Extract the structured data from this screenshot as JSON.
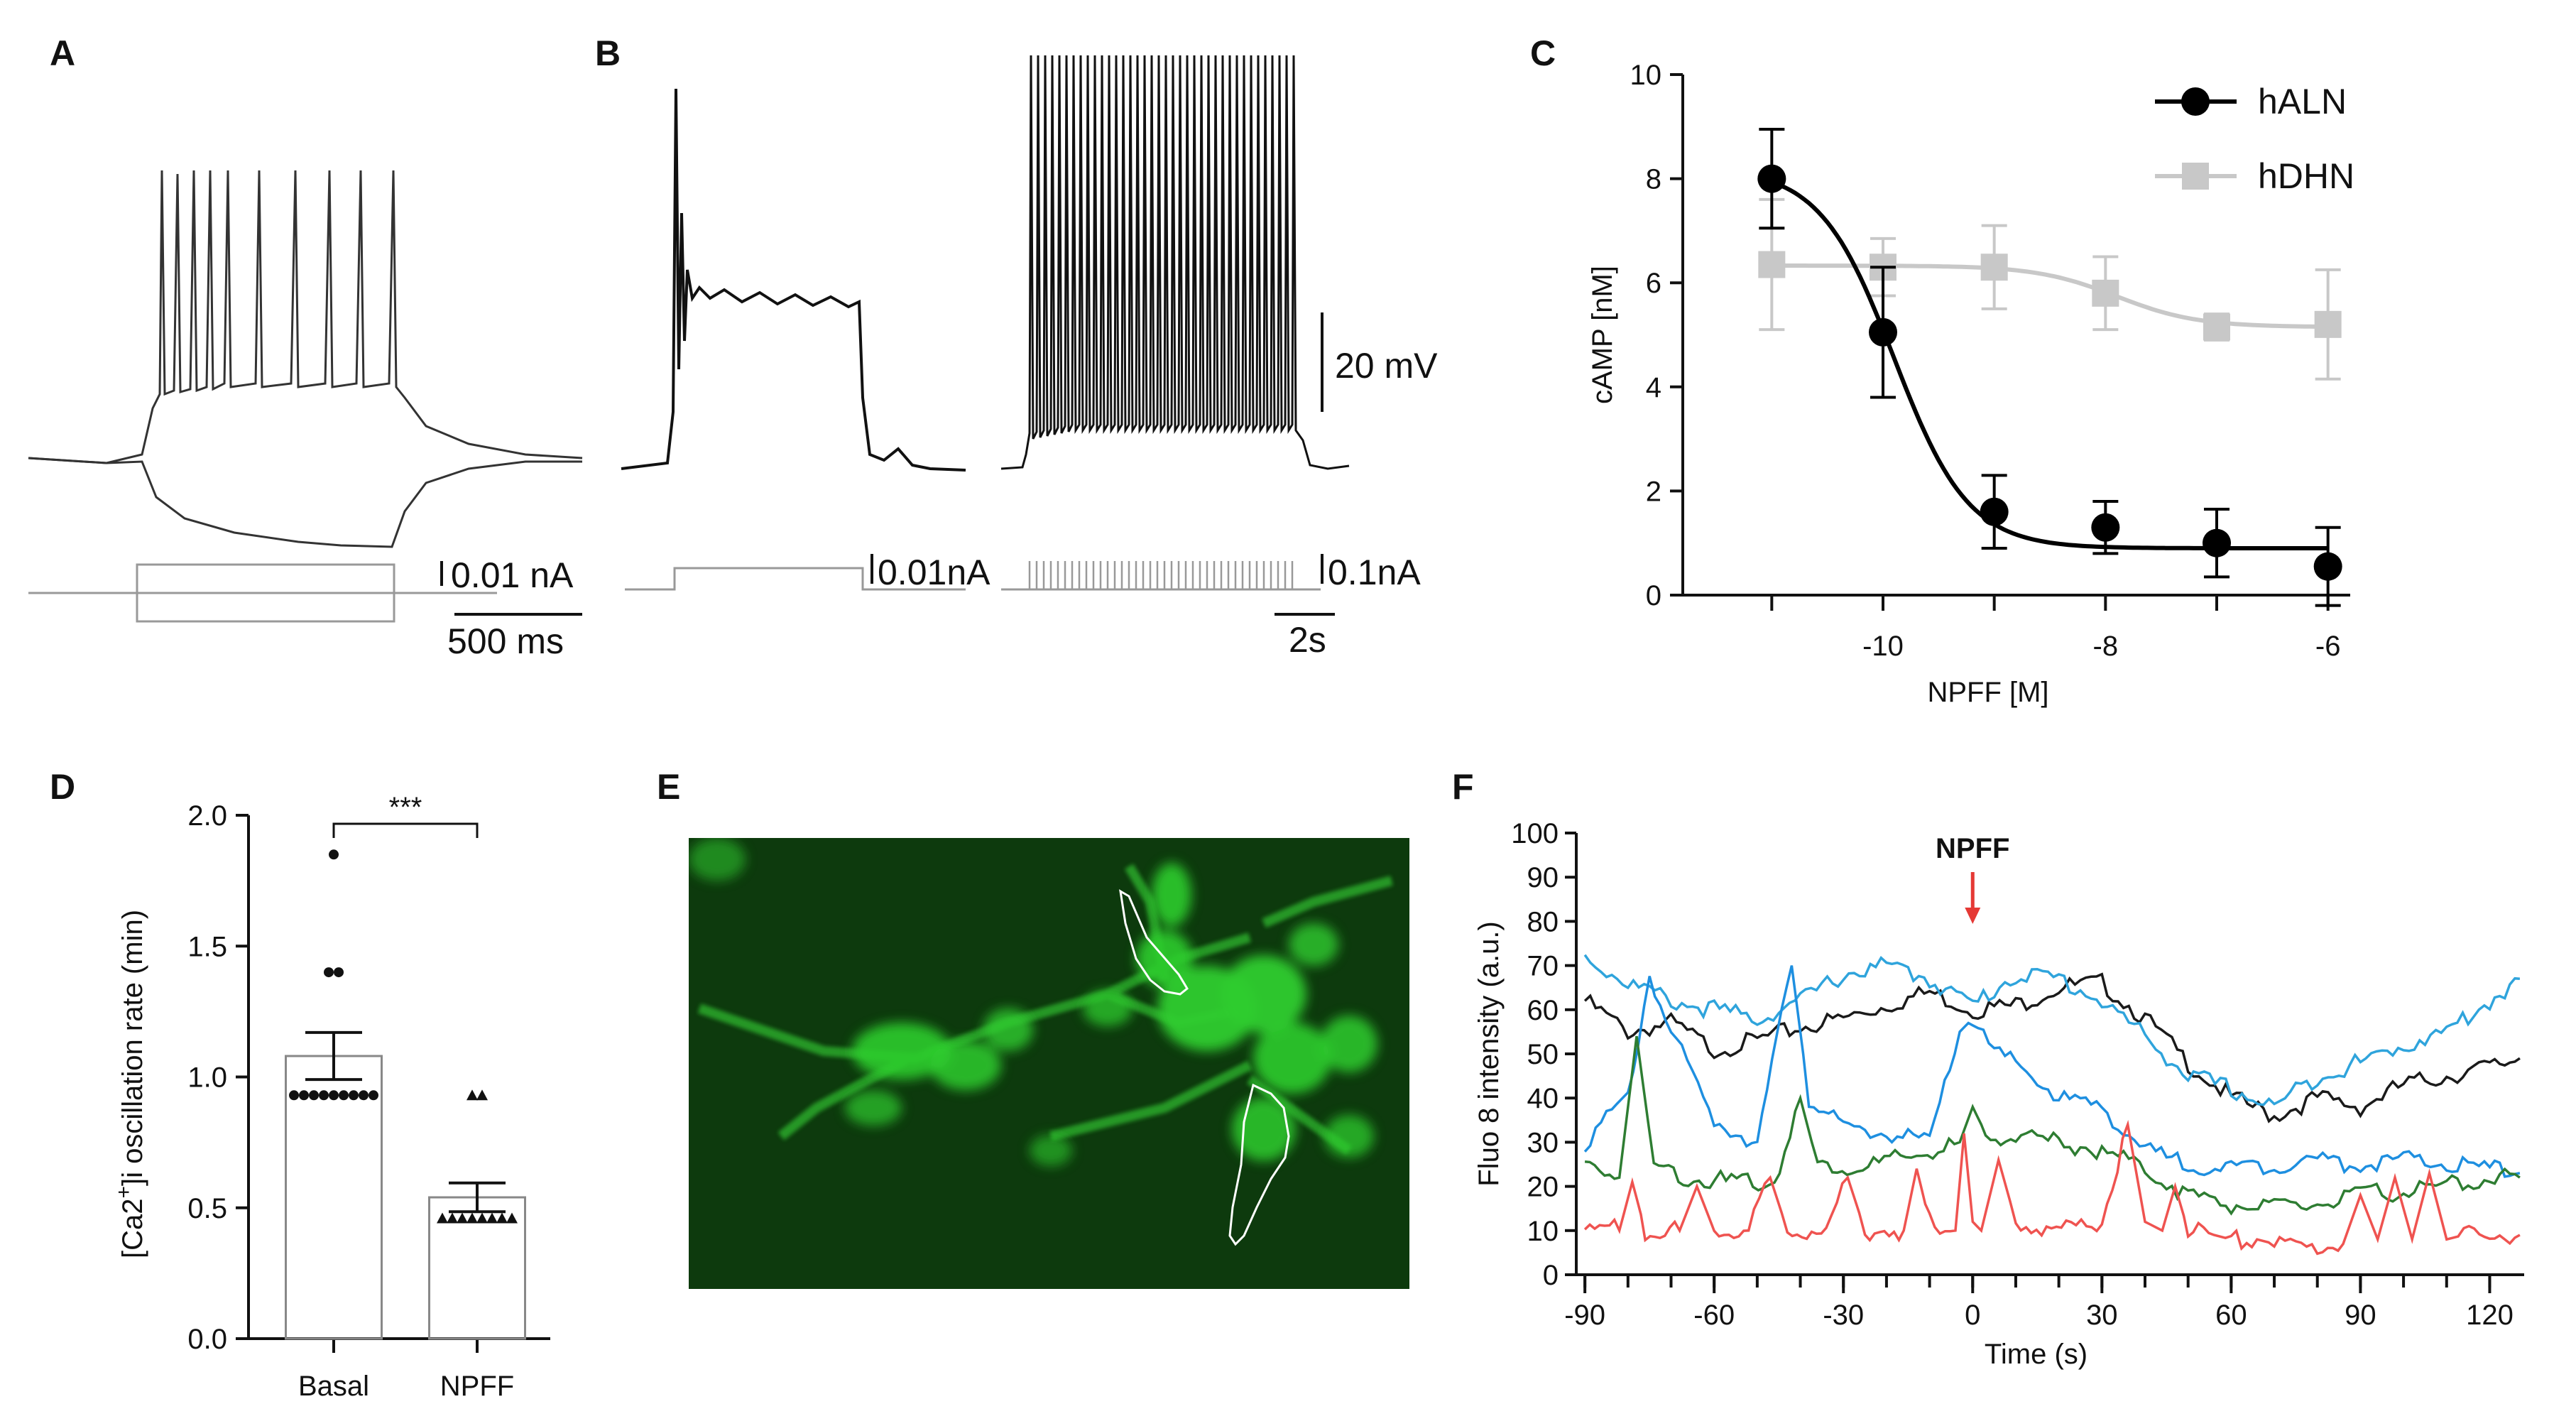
{
  "panels": {
    "A": "A",
    "B": "B",
    "C": "C",
    "D": "D",
    "E": "E",
    "F": "F"
  },
  "scale_bars": {
    "a_current": "0.01 nA",
    "a_time": "500 ms",
    "b_voltage": "20 mV",
    "b_current_step": "0.01nA",
    "b_current_train": "0.1nA",
    "b_time": "2s"
  },
  "colors": {
    "halN": "#000000",
    "hdhn": "#c8c8c8",
    "trace_black": "#1a1a1a",
    "trace_blue1": "#2fa4dc",
    "trace_blue2": "#1e8fe0",
    "trace_green": "#2e7d32",
    "trace_red": "#ef5350",
    "arrow": "#e53935",
    "cell_bg": "#0d3a0d",
    "cell_fg": "#2ecc2e"
  },
  "chart_data": [
    {
      "panel": "C",
      "type": "line",
      "xlabel": "NPFF [M]",
      "ylabel": "cAMP [nM]",
      "xlim": [
        -11.8,
        -5.8
      ],
      "ylim": [
        0,
        10
      ],
      "xticks": [
        -10,
        -8,
        -6
      ],
      "xtick_labels": [
        "-10",
        "-8",
        "-6"
      ],
      "yticks": [
        0,
        2,
        4,
        6,
        8,
        10
      ],
      "ytick_labels": [
        "0",
        "2",
        "4",
        "6",
        "8",
        "10"
      ],
      "legend_position": "top-right",
      "series": [
        {
          "name": "hALN",
          "x": [
            -11,
            -10,
            -9,
            -8,
            -7,
            -6
          ],
          "values": [
            8.0,
            5.05,
            1.6,
            1.3,
            1.0,
            0.55
          ],
          "errors": [
            0.95,
            1.25,
            0.7,
            0.5,
            0.65,
            0.75
          ],
          "fit": {
            "top": 8.2,
            "bottom": 0.9,
            "logEC50": -9.9,
            "hill": 1.3
          }
        },
        {
          "name": "hDHN",
          "x": [
            -11,
            -10,
            -9,
            -8,
            -7,
            -6
          ],
          "values": [
            6.35,
            6.3,
            6.3,
            5.8,
            5.15,
            5.2
          ],
          "errors": [
            1.25,
            0.55,
            0.8,
            0.7,
            0.25,
            1.05
          ],
          "fit": {
            "top": 6.33,
            "bottom": 5.15,
            "logEC50": -7.9,
            "hill": 1.2
          }
        }
      ]
    },
    {
      "panel": "D",
      "type": "bar",
      "ylabel_main": "[Ca2",
      "ylabel_sup": "+",
      "ylabel_rest": "]i oscillation  rate (min)",
      "categories": [
        "Basal",
        "NPFF"
      ],
      "values": [
        1.08,
        0.54
      ],
      "errors": [
        0.09,
        0.055
      ],
      "points": [
        [
          0.93,
          0.93,
          0.93,
          0.93,
          0.93,
          0.93,
          0.93,
          0.93,
          0.93,
          1.85,
          1.4,
          1.4
        ],
        [
          0.46,
          0.46,
          0.46,
          0.46,
          0.46,
          0.46,
          0.46,
          0.46,
          0.93,
          0.93
        ]
      ],
      "ylim": [
        0,
        2.0
      ],
      "yticks": [
        0,
        0.5,
        1.0,
        1.5,
        2.0
      ],
      "ytick_labels": [
        "0.0",
        "0.5",
        "1.0",
        "1.5",
        "2.0"
      ],
      "significance": "***"
    },
    {
      "panel": "F",
      "type": "line",
      "xlabel": "Time (s)",
      "ylabel": "Fluo 8 intensity (a.u.)",
      "annotation": "NPFF",
      "annotation_x": 0,
      "xlim": [
        -92,
        128
      ],
      "ylim": [
        0,
        100
      ],
      "xticks": [
        -90,
        -60,
        -30,
        0,
        30,
        60,
        90,
        120
      ],
      "xtick_labels": [
        "-90",
        "-60",
        "-30",
        "0",
        "30",
        "60",
        "90",
        "120"
      ],
      "yticks": [
        0,
        10,
        20,
        30,
        40,
        50,
        60,
        70,
        80,
        90,
        100
      ],
      "ytick_labels": [
        "0",
        "10",
        "20",
        "30",
        "40",
        "50",
        "60",
        "70",
        "80",
        "90",
        "100"
      ],
      "series": [
        {
          "name": "cell-black",
          "color": "#1a1a1a",
          "x": [
            -90,
            -80,
            -70,
            -60,
            -50,
            -40,
            -30,
            -20,
            -10,
            0,
            10,
            20,
            30,
            40,
            50,
            60,
            70,
            80,
            90,
            100,
            110,
            120,
            127
          ],
          "values": [
            62,
            55,
            57,
            51,
            53,
            56,
            58,
            61,
            64,
            60,
            61,
            65,
            66,
            58,
            48,
            40,
            36,
            40,
            38,
            43,
            45,
            47,
            49
          ]
        },
        {
          "name": "cell-blue-1",
          "color": "#2fa4dc",
          "x": [
            -90,
            -80,
            -70,
            -60,
            -50,
            -40,
            -30,
            -20,
            -10,
            0,
            10,
            20,
            30,
            40,
            50,
            60,
            70,
            80,
            90,
            100,
            110,
            120,
            127
          ],
          "values": [
            72,
            66,
            62,
            60,
            58,
            62,
            68,
            70,
            67,
            61,
            68,
            67,
            62,
            54,
            45,
            42,
            38,
            45,
            48,
            52,
            55,
            62,
            67
          ]
        },
        {
          "name": "cell-blue-2",
          "color": "#1e8fe0",
          "x": [
            -90,
            -80,
            -75,
            -70,
            -60,
            -50,
            -42,
            -38,
            -30,
            -20,
            -10,
            -3,
            0,
            5,
            10,
            20,
            30,
            40,
            50,
            60,
            70,
            80,
            90,
            100,
            110,
            120,
            127
          ],
          "values": [
            30,
            40,
            68,
            55,
            35,
            30,
            70,
            40,
            33,
            32,
            30,
            55,
            58,
            50,
            48,
            40,
            38,
            28,
            25,
            24,
            25,
            26,
            25,
            26,
            25,
            24,
            23
          ]
        },
        {
          "name": "cell-green",
          "color": "#2e7d32",
          "x": [
            -90,
            -82,
            -78,
            -74,
            -66,
            -56,
            -46,
            -40,
            -36,
            -28,
            -18,
            -8,
            -3,
            0,
            3,
            10,
            20,
            30,
            40,
            50,
            60,
            70,
            80,
            90,
            100,
            110,
            120,
            127
          ],
          "values": [
            25,
            22,
            54,
            25,
            22,
            21,
            21,
            40,
            25,
            24,
            26,
            28,
            30,
            38,
            32,
            31,
            30,
            28,
            24,
            18,
            16,
            15,
            16,
            18,
            19,
            20,
            22,
            22
          ]
        },
        {
          "name": "cell-red",
          "color": "#ef5350",
          "x": [
            -90,
            -82,
            -79,
            -76,
            -68,
            -64,
            -60,
            -52,
            -47,
            -43,
            -34,
            -29,
            -25,
            -16,
            -13,
            -10,
            -4,
            -2,
            0,
            2,
            6,
            10,
            16,
            24,
            30,
            36,
            40,
            44,
            47,
            50,
            56,
            60,
            66,
            70,
            80,
            86,
            90,
            94,
            98,
            102,
            106,
            110,
            114,
            120,
            127
          ],
          "values": [
            12,
            10,
            21,
            10,
            10,
            20,
            10,
            10,
            22,
            10,
            10,
            22,
            10,
            10,
            24,
            12,
            10,
            32,
            12,
            10,
            26,
            12,
            10,
            11,
            12,
            34,
            12,
            10,
            20,
            10,
            9,
            8,
            8,
            7,
            6,
            7,
            18,
            8,
            22,
            8,
            23,
            8,
            9,
            9,
            9
          ]
        }
      ]
    }
  ]
}
